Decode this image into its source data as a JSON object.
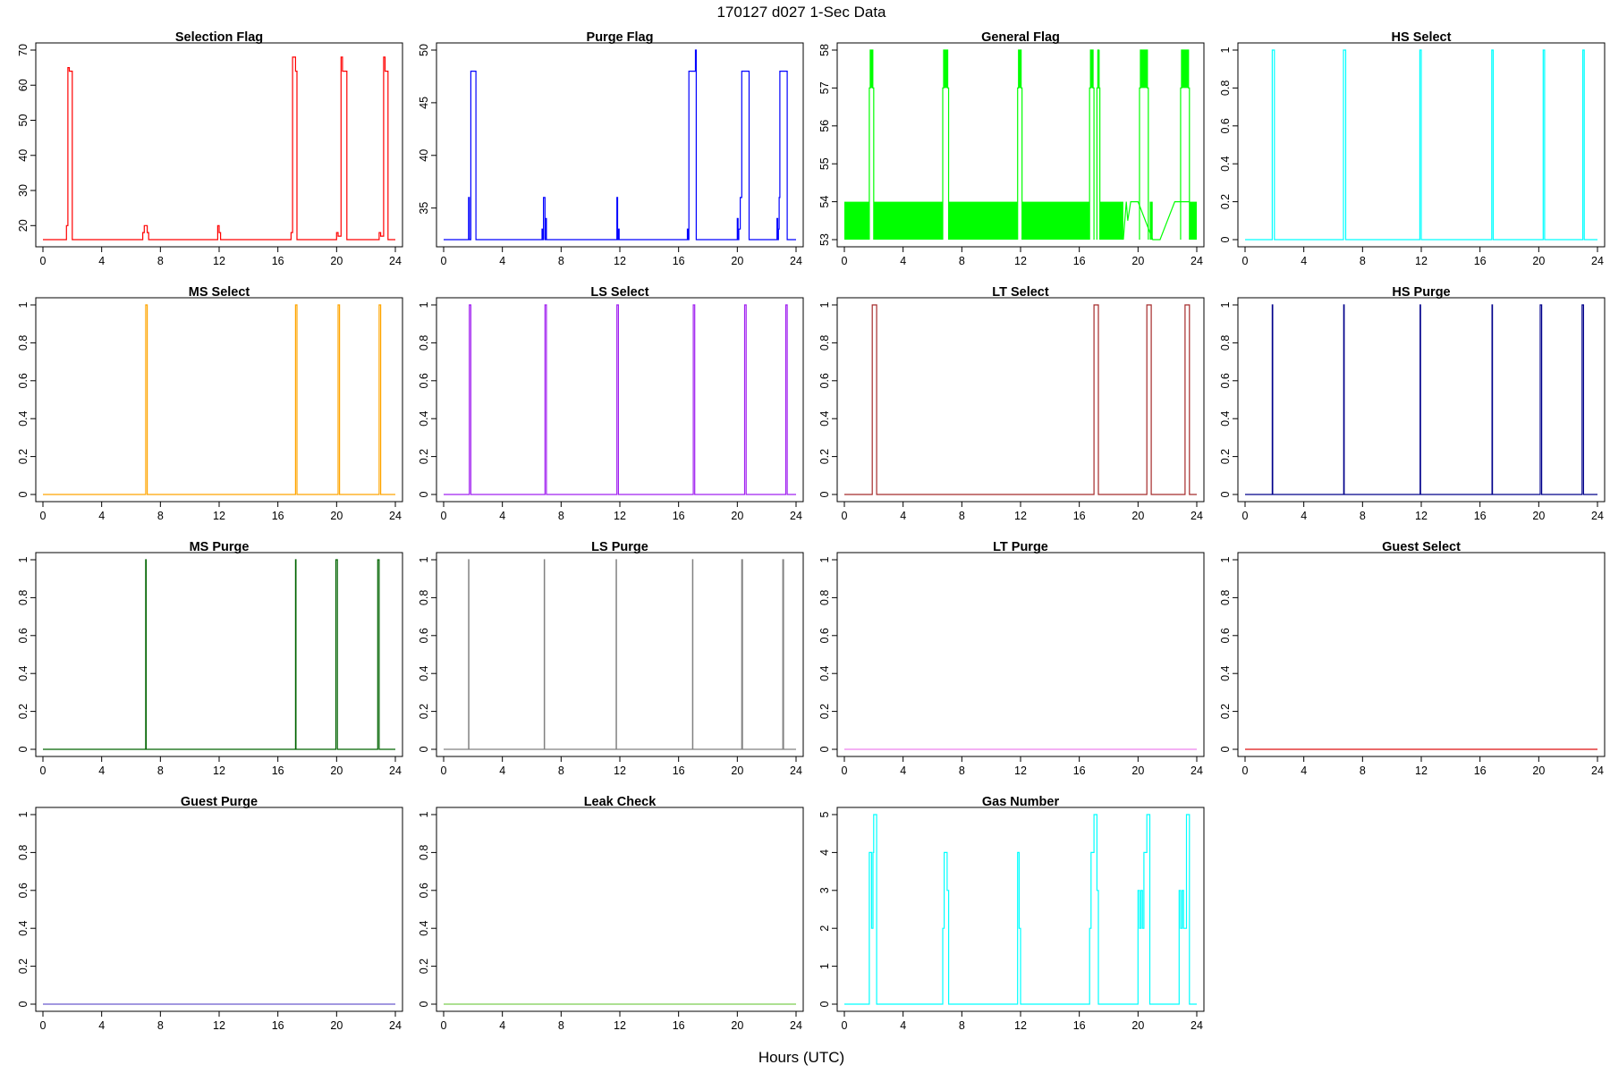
{
  "figure": {
    "title": "170127   d027   1-Sec Data",
    "xlabel": "Hours (UTC)"
  },
  "chart_data": [
    {
      "type": "line",
      "step": true,
      "title": "Selection Flag",
      "color": "#ff0000",
      "xlim": [
        0,
        24
      ],
      "ylim": [
        16,
        70
      ],
      "xticks": [
        0,
        4,
        8,
        12,
        16,
        20,
        24
      ],
      "yticks": [
        20,
        30,
        40,
        50,
        60,
        70
      ],
      "series": [
        {
          "name": "Selection Flag",
          "x": [
            0,
            1.6,
            1.7,
            1.8,
            2.0,
            2.1,
            6.8,
            6.9,
            7.1,
            7.2,
            11.9,
            12.0,
            12.1,
            16.8,
            16.9,
            17.0,
            17.2,
            17.3,
            20.0,
            20.1,
            20.3,
            20.4,
            20.7,
            20.8,
            22.9,
            23.0,
            23.2,
            23.3,
            23.5,
            23.6,
            24
          ],
          "y": [
            16,
            20,
            65,
            64,
            16,
            16,
            18,
            20,
            18,
            16,
            20,
            18,
            16,
            16,
            18,
            68,
            64,
            16,
            18,
            17,
            68,
            64,
            16,
            16,
            18,
            17,
            68,
            64,
            16,
            16,
            16
          ]
        }
      ]
    },
    {
      "type": "line",
      "step": true,
      "title": "Purge Flag",
      "color": "#0000ff",
      "xlim": [
        0,
        24
      ],
      "ylim": [
        32,
        50
      ],
      "xticks": [
        0,
        4,
        8,
        12,
        16,
        20,
        24
      ],
      "yticks": [
        35,
        40,
        45,
        50
      ],
      "series": [
        {
          "name": "Purge Flag",
          "x": [
            0,
            1.7,
            1.75,
            1.85,
            1.9,
            2.2,
            6.7,
            6.75,
            6.8,
            6.9,
            6.95,
            7.0,
            11.8,
            11.85,
            11.9,
            11.95,
            16.6,
            16.65,
            16.7,
            17.1,
            17.15,
            17.2,
            20.0,
            20.05,
            20.1,
            20.2,
            20.3,
            20.4,
            20.8,
            22.7,
            22.75,
            22.8,
            22.85,
            22.9,
            23.0,
            23.4,
            24
          ],
          "y": [
            32,
            36,
            32,
            48,
            48,
            32,
            33,
            32,
            36,
            32,
            34,
            32,
            36,
            32,
            33,
            32,
            33,
            32,
            48,
            48,
            50,
            32,
            34,
            32,
            33,
            36,
            48,
            48,
            32,
            34,
            32,
            33,
            36,
            48,
            48,
            32,
            32
          ]
        }
      ]
    },
    {
      "type": "line",
      "step": true,
      "title": "General Flag",
      "color": "#00ff00",
      "xlim": [
        0,
        24
      ],
      "ylim": [
        53,
        58
      ],
      "xticks": [
        0,
        4,
        8,
        12,
        16,
        20,
        24
      ],
      "yticks": [
        53,
        54,
        55,
        56,
        57,
        58
      ],
      "band": [
        [
          0,
          1.7
        ],
        [
          2.0,
          6.7
        ],
        [
          7.1,
          11.8
        ],
        [
          12.1,
          16.7
        ],
        [
          17.4,
          19.0
        ],
        [
          20.8,
          21.0
        ],
        [
          23.5,
          24.0
        ]
      ],
      "spikes": [
        [
          1.7,
          2.0
        ],
        [
          6.7,
          7.1
        ],
        [
          11.8,
          12.1
        ],
        [
          16.7,
          17.0
        ],
        [
          17.2,
          17.4
        ],
        [
          20.1,
          20.7
        ],
        [
          22.9,
          23.5
        ]
      ],
      "series": [
        {
          "name": "General Flag",
          "x": [
            19.0,
            19.2,
            19.3,
            19.5,
            19.8,
            20.0,
            21.0,
            21.5,
            22.0,
            22.5,
            22.8,
            23.5
          ],
          "y": [
            53.0,
            54.0,
            53.5,
            54.0,
            54.0,
            54.0,
            53.0,
            53.0,
            53.5,
            54.0,
            54.0,
            54.0
          ]
        }
      ]
    },
    {
      "type": "line",
      "step": true,
      "title": "HS Select",
      "color": "#00ffff",
      "xlim": [
        0,
        24
      ],
      "ylim": [
        0,
        1
      ],
      "xticks": [
        0,
        4,
        8,
        12,
        16,
        20,
        24
      ],
      "yticks": [
        0,
        0.2,
        0.4,
        0.6,
        0.8,
        1
      ],
      "pulses": [
        [
          1.85,
          2.0
        ],
        [
          6.7,
          6.85
        ],
        [
          11.9,
          12.0
        ],
        [
          16.8,
          16.9
        ],
        [
          20.3,
          20.4
        ],
        [
          23.0,
          23.1
        ]
      ]
    },
    {
      "type": "line",
      "step": true,
      "title": "MS Select",
      "color": "#ffa500",
      "xlim": [
        0,
        24
      ],
      "ylim": [
        0,
        1
      ],
      "xticks": [
        0,
        4,
        8,
        12,
        16,
        20,
        24
      ],
      "yticks": [
        0,
        0.2,
        0.4,
        0.6,
        0.8,
        1
      ],
      "pulses": [
        [
          7.0,
          7.1
        ],
        [
          17.2,
          17.3
        ],
        [
          20.1,
          20.2
        ],
        [
          22.9,
          23.0
        ]
      ]
    },
    {
      "type": "line",
      "step": true,
      "title": "LS Select",
      "color": "#a020f0",
      "xlim": [
        0,
        24
      ],
      "ylim": [
        0,
        1
      ],
      "xticks": [
        0,
        4,
        8,
        12,
        16,
        20,
        24
      ],
      "yticks": [
        0,
        0.2,
        0.4,
        0.6,
        0.8,
        1
      ],
      "pulses": [
        [
          1.75,
          1.85
        ],
        [
          6.9,
          7.0
        ],
        [
          11.8,
          11.9
        ],
        [
          17.0,
          17.1
        ],
        [
          20.5,
          20.6
        ],
        [
          23.3,
          23.4
        ]
      ]
    },
    {
      "type": "line",
      "step": true,
      "title": "LT Select",
      "color": "#a52a2a",
      "xlim": [
        0,
        24
      ],
      "ylim": [
        0,
        1
      ],
      "xticks": [
        0,
        4,
        8,
        12,
        16,
        20,
        24
      ],
      "yticks": [
        0,
        0.2,
        0.4,
        0.6,
        0.8,
        1
      ],
      "pulses": [
        [
          1.9,
          2.2
        ],
        [
          17.0,
          17.3
        ],
        [
          20.6,
          20.9
        ],
        [
          23.2,
          23.5
        ]
      ]
    },
    {
      "type": "line",
      "step": true,
      "title": "HS Purge",
      "color": "#00008b",
      "xlim": [
        0,
        24
      ],
      "ylim": [
        0,
        1
      ],
      "xticks": [
        0,
        4,
        8,
        12,
        16,
        20,
        24
      ],
      "yticks": [
        0,
        0.2,
        0.4,
        0.6,
        0.8,
        1
      ],
      "pulses": [
        [
          1.85,
          1.88
        ],
        [
          6.72,
          6.75
        ],
        [
          11.92,
          11.95
        ],
        [
          16.82,
          16.85
        ],
        [
          20.1,
          20.2
        ],
        [
          22.95,
          23.05
        ]
      ]
    },
    {
      "type": "line",
      "step": true,
      "title": "MS Purge",
      "color": "#006400",
      "xlim": [
        0,
        24
      ],
      "ylim": [
        0,
        1
      ],
      "xticks": [
        0,
        4,
        8,
        12,
        16,
        20,
        24
      ],
      "yticks": [
        0,
        0.2,
        0.4,
        0.6,
        0.8,
        1
      ],
      "pulses": [
        [
          7.0,
          7.03
        ],
        [
          17.2,
          17.23
        ],
        [
          19.95,
          20.05
        ],
        [
          22.8,
          22.9
        ]
      ]
    },
    {
      "type": "line",
      "step": true,
      "title": "LS Purge",
      "color": "#808080",
      "xlim": [
        0,
        24
      ],
      "ylim": [
        0,
        1
      ],
      "xticks": [
        0,
        4,
        8,
        12,
        16,
        20,
        24
      ],
      "yticks": [
        0,
        0.2,
        0.4,
        0.6,
        0.8,
        1
      ],
      "pulses": [
        [
          1.7,
          1.72
        ],
        [
          6.85,
          6.87
        ],
        [
          11.75,
          11.77
        ],
        [
          16.95,
          16.97
        ],
        [
          20.3,
          20.35
        ],
        [
          23.1,
          23.15
        ]
      ]
    },
    {
      "type": "line",
      "step": true,
      "title": "LT Purge",
      "color": "#ee82ee",
      "xlim": [
        0,
        24
      ],
      "ylim": [
        0,
        1
      ],
      "xticks": [
        0,
        4,
        8,
        12,
        16,
        20,
        24
      ],
      "yticks": [
        0,
        0.2,
        0.4,
        0.6,
        0.8,
        1
      ],
      "pulses": []
    },
    {
      "type": "line",
      "step": true,
      "title": "Guest Select",
      "color": "#dd1111",
      "xlim": [
        0,
        24
      ],
      "ylim": [
        0,
        1
      ],
      "xticks": [
        0,
        4,
        8,
        12,
        16,
        20,
        24
      ],
      "yticks": [
        0,
        0.2,
        0.4,
        0.6,
        0.8,
        1
      ],
      "pulses": []
    },
    {
      "type": "line",
      "step": true,
      "title": "Guest Purge",
      "color": "#6a5acd",
      "xlim": [
        0,
        24
      ],
      "ylim": [
        0,
        1
      ],
      "xticks": [
        0,
        4,
        8,
        12,
        16,
        20,
        24
      ],
      "yticks": [
        0,
        0.2,
        0.4,
        0.6,
        0.8,
        1
      ],
      "pulses": []
    },
    {
      "type": "line",
      "step": true,
      "title": "Leak Check",
      "color": "#7ccd52",
      "xlim": [
        0,
        24
      ],
      "ylim": [
        0,
        1
      ],
      "xticks": [
        0,
        4,
        8,
        12,
        16,
        20,
        24
      ],
      "yticks": [
        0,
        0.2,
        0.4,
        0.6,
        0.8,
        1
      ],
      "pulses": []
    },
    {
      "type": "line",
      "step": true,
      "title": "Gas Number",
      "color": "#00ffff",
      "xlim": [
        0,
        24
      ],
      "ylim": [
        0,
        5
      ],
      "xticks": [
        0,
        4,
        8,
        12,
        16,
        20,
        24
      ],
      "yticks": [
        0,
        1,
        2,
        3,
        4,
        5
      ],
      "series": [
        {
          "name": "Gas Number",
          "x": [
            0,
            1.7,
            1.85,
            1.95,
            2.0,
            2.2,
            6.7,
            6.75,
            6.8,
            6.9,
            7.0,
            7.1,
            11.8,
            11.9,
            12.0,
            16.7,
            16.8,
            16.9,
            17.0,
            17.2,
            17.3,
            17.4,
            20.0,
            20.1,
            20.2,
            20.3,
            20.4,
            20.6,
            20.8,
            22.8,
            22.9,
            23.0,
            23.1,
            23.3,
            23.5,
            24
          ],
          "y": [
            0,
            4,
            2,
            4,
            5,
            0,
            2,
            2,
            4,
            4,
            3,
            0,
            4,
            2,
            0,
            2,
            4,
            4,
            5,
            3,
            0,
            0,
            3,
            2,
            3,
            2,
            4,
            5,
            0,
            3,
            2,
            3,
            2,
            5,
            0,
            0
          ]
        }
      ]
    }
  ]
}
